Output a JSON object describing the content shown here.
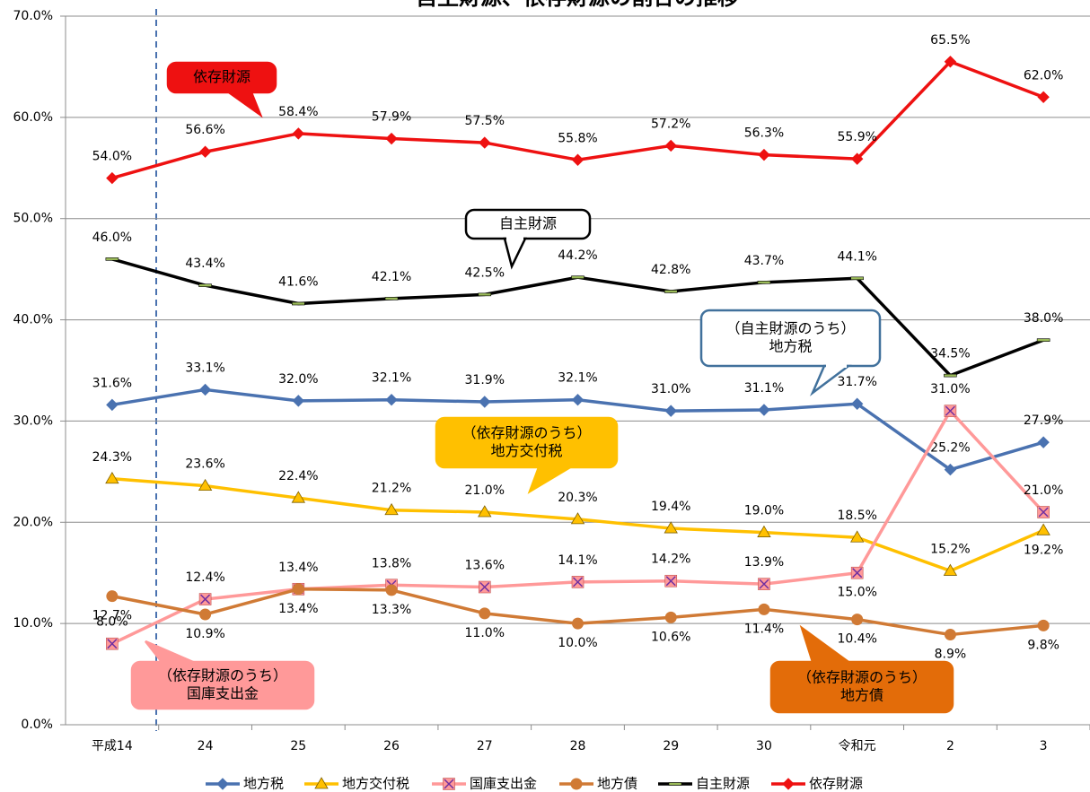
{
  "chart_data": {
    "type": "line",
    "title": "自主財源、依存財源の割合の推移",
    "categories": [
      "平成14",
      "24",
      "25",
      "26",
      "27",
      "28",
      "29",
      "30",
      "令和元",
      "2",
      "3"
    ],
    "ylim": [
      0,
      70
    ],
    "yticks": [
      {
        "value": 0,
        "label": "0.0%"
      },
      {
        "value": 10,
        "label": "10.0%"
      },
      {
        "value": 20,
        "label": "20.0%"
      },
      {
        "value": 30,
        "label": "30.0%"
      },
      {
        "value": 40,
        "label": "40.0%"
      },
      {
        "value": 50,
        "label": "50.0%"
      },
      {
        "value": 60,
        "label": "60.0%"
      },
      {
        "value": 70,
        "label": "70.0%"
      }
    ],
    "grid": true,
    "legend": "bottom",
    "series": [
      {
        "name": "地方税",
        "color": "#4a72b0",
        "marker": "diamond",
        "values": [
          31.6,
          33.1,
          32.0,
          32.1,
          31.9,
          32.1,
          31.0,
          31.1,
          31.7,
          25.2,
          27.9
        ],
        "value_labels": [
          "31.6%",
          "33.1%",
          "32.0%",
          "32.1%",
          "31.9%",
          "32.1%",
          "31.0%",
          "31.1%",
          "31.7%",
          "25.2%",
          "27.9%"
        ]
      },
      {
        "name": "地方交付税",
        "color": "#ffc000",
        "marker": "triangle",
        "values": [
          24.3,
          23.6,
          22.4,
          21.2,
          21.0,
          20.3,
          19.4,
          19.0,
          18.5,
          15.2,
          19.2
        ],
        "value_labels": [
          "24.3%",
          "23.6%",
          "22.4%",
          "21.2%",
          "21.0%",
          "20.3%",
          "19.4%",
          "19.0%",
          "18.5%",
          "15.2%",
          "19.2%"
        ]
      },
      {
        "name": "国庫支出金",
        "color": "#ff9999",
        "marker": "xsquare",
        "values": [
          8.0,
          12.4,
          13.4,
          13.8,
          13.6,
          14.1,
          14.2,
          13.9,
          15.0,
          31.0,
          21.0
        ],
        "value_labels": [
          "8.0%",
          "12.4%",
          "13.4%",
          "13.8%",
          "13.6%",
          "14.1%",
          "14.2%",
          "13.9%",
          "15.0%",
          "31.0%",
          "21.0%"
        ]
      },
      {
        "name": "地方債",
        "color": "#d07a35",
        "marker": "circle",
        "values": [
          12.7,
          10.9,
          13.4,
          13.3,
          11.0,
          10.0,
          10.6,
          11.4,
          10.4,
          8.9,
          9.8
        ],
        "value_labels": [
          "12.7%",
          "10.9%",
          "13.4%",
          "13.3%",
          "11.0%",
          "10.0%",
          "10.6%",
          "11.4%",
          "10.4%",
          "8.9%",
          "9.8%"
        ]
      },
      {
        "name": "自主財源",
        "color": "#000000",
        "marker": "dash",
        "values": [
          46.0,
          43.4,
          41.6,
          42.1,
          42.5,
          44.2,
          42.8,
          43.7,
          44.1,
          34.5,
          38.0
        ],
        "value_labels": [
          "46.0%",
          "43.4%",
          "41.6%",
          "42.1%",
          "42.5%",
          "44.2%",
          "42.8%",
          "43.7%",
          "44.1%",
          "34.5%",
          "38.0%"
        ]
      },
      {
        "name": "依存財源",
        "color": "#ee1111",
        "marker": "diamond",
        "values": [
          54.0,
          56.6,
          58.4,
          57.9,
          57.5,
          55.8,
          57.2,
          56.3,
          55.9,
          65.5,
          62.0
        ],
        "value_labels": [
          "54.0%",
          "56.6%",
          "58.4%",
          "57.9%",
          "57.5%",
          "55.8%",
          "57.2%",
          "56.3%",
          "55.9%",
          "65.5%",
          "62.0%"
        ]
      }
    ],
    "annotations": [
      {
        "lines": [
          "依存財源"
        ]
      },
      {
        "lines": [
          "自主財源"
        ]
      },
      {
        "lines": [
          "（自主財源のうち）",
          "地方税"
        ]
      },
      {
        "lines": [
          "（依存財源のうち）",
          "地方交付税"
        ]
      },
      {
        "lines": [
          "（依存財源のうち）",
          "国庫支出金"
        ]
      },
      {
        "lines": [
          "（依存財源のうち）",
          "地方債"
        ]
      }
    ]
  }
}
